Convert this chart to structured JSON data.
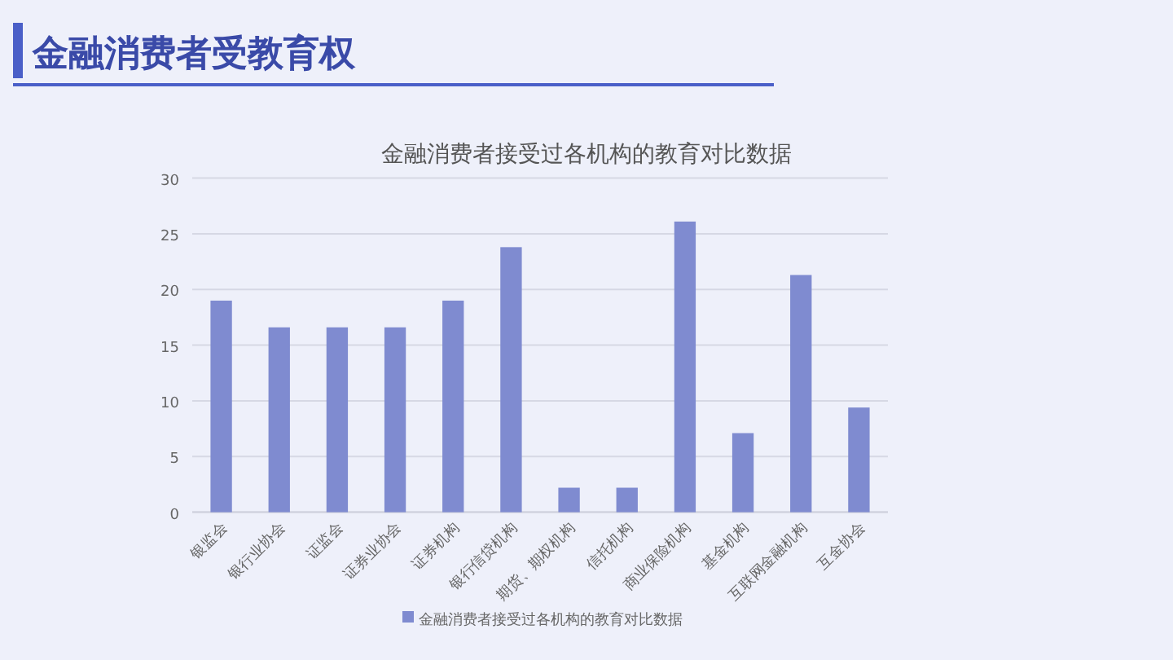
{
  "chart_data": {
    "type": "bar",
    "title": "金融消费者受教育权",
    "subtitle": "金融消费者接受过各机构的教育对比数据",
    "categories": [
      "银监会",
      "银行业协会",
      "证监会",
      "证券业协会",
      "证券机构",
      "银行信贷机构",
      "期货、期权机构",
      "信托机构",
      "商业保险机构",
      "基金机构",
      "互联网金融机构",
      "互金协会"
    ],
    "series": [
      {
        "name": "金融消费者接受过各机构的教育对比数据",
        "color": "#7f8bd0",
        "values": [
          19,
          16.6,
          16.6,
          16.6,
          19,
          23.8,
          2.2,
          2.2,
          26.1,
          7.1,
          21.3,
          9.4
        ]
      }
    ],
    "ylim": [
      0,
      30
    ],
    "yticks": [
      0,
      5,
      10,
      15,
      20,
      25,
      30
    ],
    "grid": "y",
    "legend": "bottom"
  }
}
